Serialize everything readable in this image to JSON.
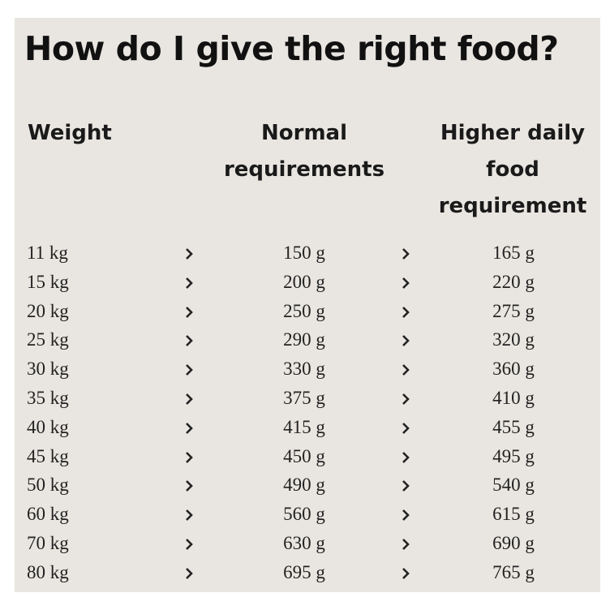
{
  "title": "How do I give the right food?",
  "table": {
    "headers": [
      "Weight",
      "Normal requirements",
      "Higher daily food requirement"
    ],
    "rows": [
      [
        "11 kg",
        "150 g",
        "165 g"
      ],
      [
        "15 kg",
        "200 g",
        "220 g"
      ],
      [
        "20 kg",
        "250 g",
        "275 g"
      ],
      [
        "25 kg",
        "290 g",
        "320 g"
      ],
      [
        "30 kg",
        "330 g",
        "360 g"
      ],
      [
        "35 kg",
        "375 g",
        "410 g"
      ],
      [
        "40 kg",
        "415 g",
        "455 g"
      ],
      [
        "45 kg",
        "450 g",
        "495 g"
      ],
      [
        "50 kg",
        "490 g",
        "540 g"
      ],
      [
        "60 kg",
        "560 g",
        "615 g"
      ],
      [
        "70 kg",
        "630 g",
        "690 g"
      ],
      [
        "80 kg",
        "695 g",
        "765 g"
      ]
    ]
  }
}
